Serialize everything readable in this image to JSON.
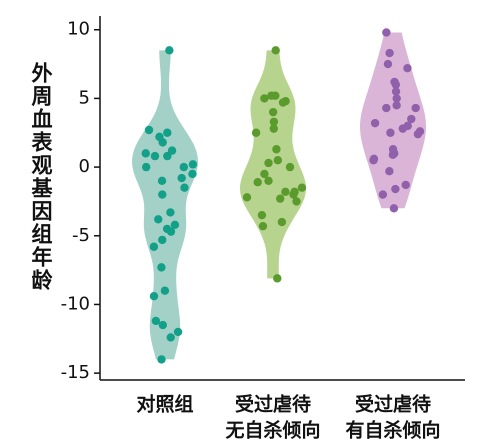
{
  "chart_data": {
    "type": "violin",
    "ylabel": "外周血表观基因组年龄",
    "categories": [
      [
        "对照组"
      ],
      [
        "受过虐待",
        "无自杀倾向"
      ],
      [
        "受过虐待",
        "有自杀倾向"
      ]
    ],
    "ylim": [
      -15.5,
      11
    ],
    "yticks": [
      10,
      5,
      0,
      -5,
      -10,
      -15
    ],
    "series": [
      {
        "fill": "#a3d1c8",
        "color": "#12a088",
        "values": [
          8.5,
          2.7,
          2.5,
          2.2,
          1.8,
          1.2,
          1,
          0.8,
          0.8,
          0.2,
          0,
          0,
          -0.5,
          -0.8,
          -1,
          -1.5,
          -2,
          -3.3,
          -3.8,
          -4.2,
          -4.5,
          -4.7,
          -5.3,
          -5.8,
          -7.3,
          -9,
          -9.4,
          -11.2,
          -11.5,
          -12,
          -12.4,
          -14
        ]
      },
      {
        "fill": "#b7d48f",
        "color": "#5b9a2c",
        "values": [
          8.5,
          5.2,
          5.2,
          5,
          4.8,
          4.7,
          4,
          3.3,
          2.8,
          2.5,
          1.3,
          0.5,
          0.3,
          0,
          -0.5,
          -1,
          -1.1,
          -1.5,
          -1.8,
          -1.8,
          -2,
          -2.2,
          -2.3,
          -2.5,
          -3.5,
          -4,
          -4.3,
          -8.1
        ]
      },
      {
        "fill": "#dab5d8",
        "color": "#9060ab",
        "values": [
          9.8,
          8.3,
          7.5,
          7.2,
          6.2,
          6,
          5.5,
          5,
          4.5,
          4.3,
          4.3,
          3.5,
          3.2,
          3,
          2.8,
          2.6,
          2.5,
          2.4,
          1.3,
          1,
          0.9,
          0.6,
          0.5,
          -0.3,
          -1.3,
          -1.6,
          -2,
          -3
        ]
      }
    ]
  }
}
